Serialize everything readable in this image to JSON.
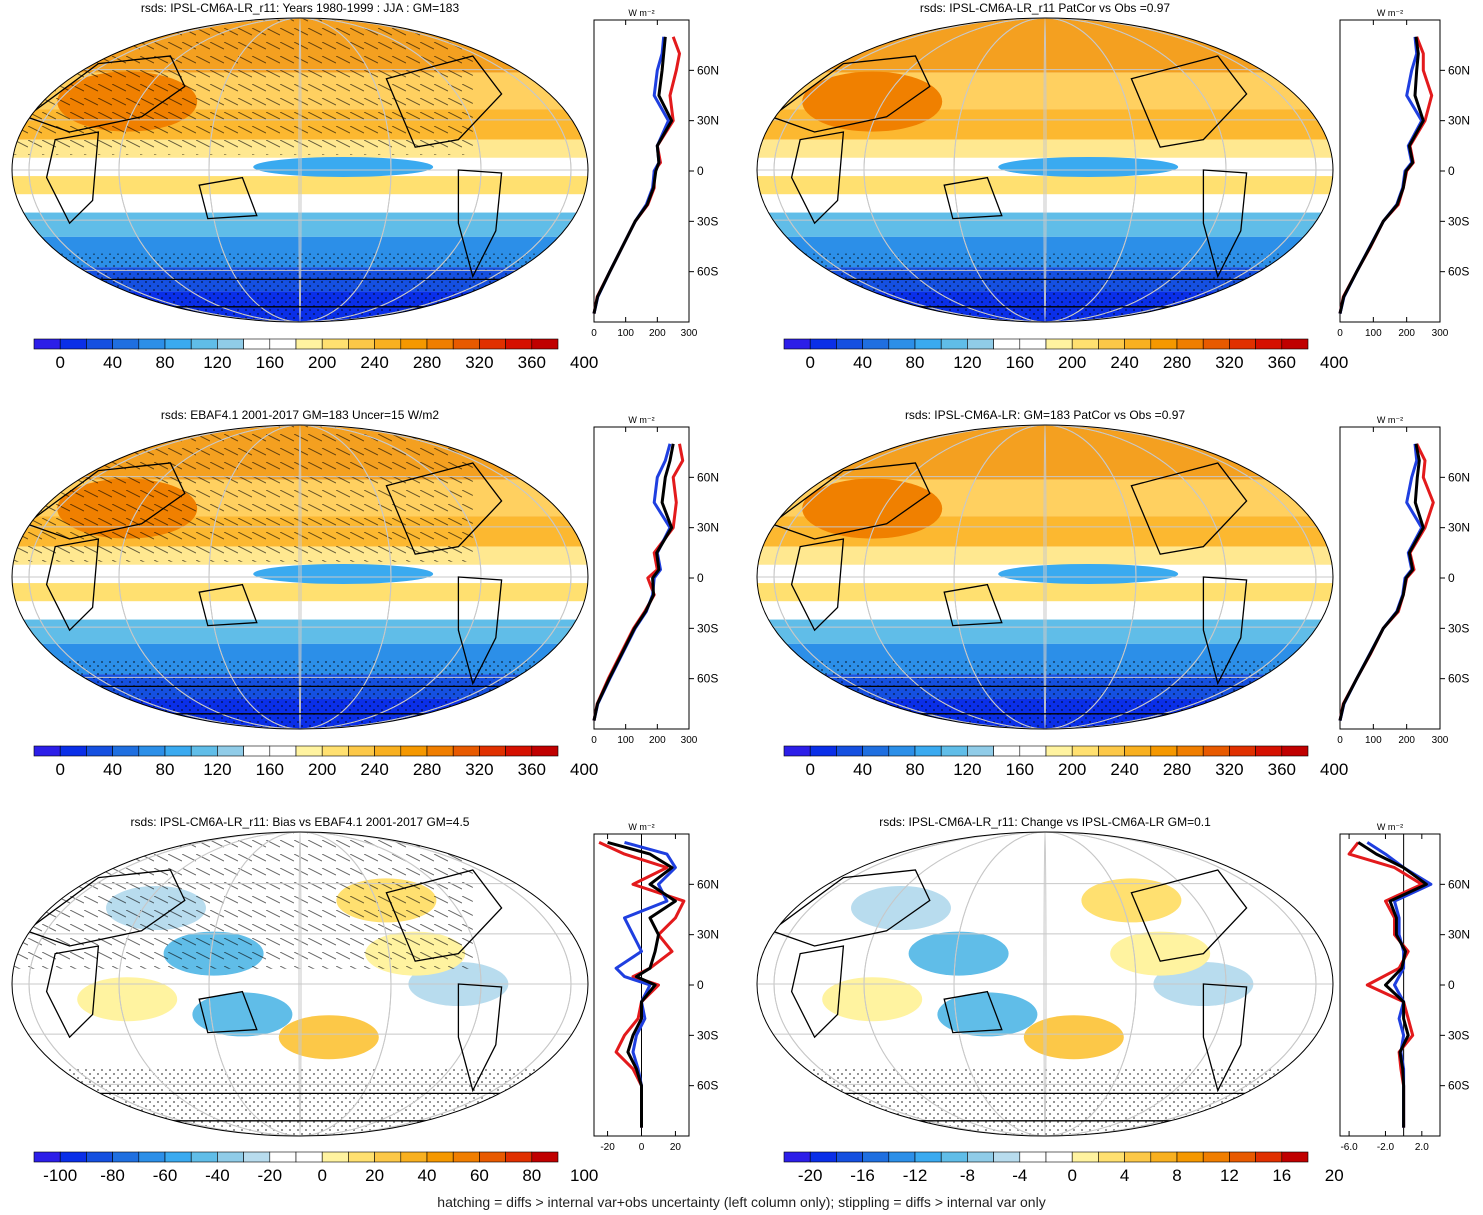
{
  "footer": "hatching = diffs > internal var+obs uncertainty (left column only); stippling = diffs > internal var only",
  "lat_ticks": [
    "60N",
    "30N",
    "0",
    "30S",
    "60S"
  ],
  "lat_values": [
    60,
    30,
    0,
    -30,
    -60
  ],
  "profile_unit": "W m⁻²",
  "colors": {
    "obs_line": "#e31a1c",
    "model_line": "#1f3fe0",
    "mean_line": "#000000",
    "land": "#000000"
  },
  "chart_data": [
    {
      "type": "heatmap",
      "title": "rsds: IPSL-CM6A-LR_r11: Years 1980-1999 : JJA : GM=183",
      "colorbar": {
        "labels": [
          "0",
          "40",
          "80",
          "120",
          "160",
          "200",
          "240",
          "280",
          "320",
          "360",
          "400"
        ]
      },
      "profile": {
        "xticks": [
          "0",
          "100",
          "200",
          "300"
        ],
        "xlim": [
          0,
          300
        ],
        "lat": [
          80,
          70,
          60,
          45,
          30,
          15,
          5,
          0,
          -10,
          -20,
          -30,
          -45,
          -60,
          -75,
          -85
        ],
        "series": [
          {
            "color": "red",
            "values": [
              250,
              270,
              260,
              240,
              250,
              200,
              210,
              190,
              190,
              170,
              130,
              90,
              50,
              10,
              0
            ]
          },
          {
            "color": "blue",
            "values": [
              220,
              215,
              200,
              190,
              235,
              200,
              205,
              190,
              185,
              165,
              130,
              90,
              50,
              12,
              0
            ]
          },
          {
            "color": "black",
            "values": [
              225,
              220,
              215,
              205,
              245,
              200,
              205,
              195,
              188,
              168,
              130,
              90,
              50,
              11,
              0
            ]
          }
        ]
      }
    },
    {
      "type": "heatmap",
      "title": "rsds: IPSL-CM6A-LR_r11 PatCor vs Obs =0.97",
      "colorbar": {
        "labels": [
          "0",
          "40",
          "80",
          "120",
          "160",
          "200",
          "240",
          "280",
          "320",
          "360",
          "400"
        ]
      },
      "profile": {
        "xticks": [
          "0",
          "100",
          "200",
          "300"
        ],
        "xlim": [
          0,
          300
        ],
        "lat": [
          80,
          70,
          60,
          45,
          30,
          15,
          5,
          0,
          -10,
          -20,
          -30,
          -45,
          -60,
          -75,
          -85
        ],
        "series": [
          {
            "color": "red",
            "values": [
              230,
              250,
              250,
              275,
              255,
              210,
              220,
              200,
              190,
              175,
              130,
              92,
              50,
              10,
              0
            ]
          },
          {
            "color": "blue",
            "values": [
              225,
              230,
              215,
              200,
              245,
              205,
              215,
              195,
              188,
              170,
              130,
              90,
              50,
              12,
              0
            ]
          },
          {
            "color": "black",
            "values": [
              228,
              235,
              230,
              225,
              250,
              208,
              218,
              198,
              190,
              172,
              130,
              91,
              50,
              11,
              0
            ]
          }
        ]
      }
    },
    {
      "type": "heatmap",
      "title": "rsds: EBAF4.1 2001-2017 GM=183 Uncer=15 W/m2",
      "colorbar": {
        "labels": [
          "0",
          "40",
          "80",
          "120",
          "160",
          "200",
          "240",
          "280",
          "320",
          "360",
          "400"
        ]
      },
      "profile": {
        "xticks": [
          "0",
          "100",
          "200",
          "300"
        ],
        "xlim": [
          0,
          300
        ],
        "lat": [
          80,
          70,
          60,
          45,
          30,
          15,
          5,
          0,
          -10,
          -20,
          -30,
          -45,
          -60,
          -75,
          -85
        ],
        "series": [
          {
            "color": "red",
            "values": [
              270,
              280,
              250,
              260,
              250,
              190,
              200,
              170,
              190,
              160,
              125,
              85,
              45,
              10,
              0
            ]
          },
          {
            "color": "blue",
            "values": [
              240,
              225,
              200,
              190,
              240,
              200,
              210,
              190,
              185,
              165,
              130,
              90,
              50,
              12,
              0
            ]
          },
          {
            "color": "black",
            "values": [
              250,
              240,
              225,
              215,
              245,
              198,
              205,
              185,
              188,
              163,
              128,
              88,
              48,
              11,
              0
            ]
          }
        ]
      }
    },
    {
      "type": "heatmap",
      "title": "rsds: IPSL-CM6A-LR: GM=183 PatCor vs Obs =0.97",
      "colorbar": {
        "labels": [
          "0",
          "40",
          "80",
          "120",
          "160",
          "200",
          "240",
          "280",
          "320",
          "360",
          "400"
        ]
      },
      "profile": {
        "xticks": [
          "0",
          "100",
          "200",
          "300"
        ],
        "xlim": [
          0,
          300
        ],
        "lat": [
          80,
          70,
          60,
          45,
          30,
          15,
          5,
          0,
          -10,
          -20,
          -30,
          -45,
          -60,
          -75,
          -85
        ],
        "series": [
          {
            "color": "red",
            "values": [
              230,
              255,
              250,
              280,
              255,
              210,
              222,
              200,
              190,
              175,
              130,
              92,
              50,
              10,
              0
            ]
          },
          {
            "color": "blue",
            "values": [
              225,
              230,
              215,
              200,
              245,
              205,
              215,
              195,
              188,
              170,
              130,
              90,
              50,
              12,
              0
            ]
          },
          {
            "color": "black",
            "values": [
              228,
              238,
              232,
              226,
              250,
              208,
              218,
              198,
              190,
              172,
              130,
              91,
              50,
              11,
              0
            ]
          }
        ]
      }
    },
    {
      "type": "heatmap",
      "title": "rsds: IPSL-CM6A-LR_r11: Bias vs EBAF4.1 2001-2017 GM=4.5",
      "colorbar": {
        "labels": [
          "-100",
          "-80",
          "-60",
          "-40",
          "-20",
          "0",
          "20",
          "40",
          "60",
          "80",
          "100"
        ]
      },
      "profile": {
        "xticks": [
          "-20",
          "0",
          "20"
        ],
        "xlim": [
          -28,
          28
        ],
        "lat": [
          85,
          78,
          70,
          60,
          50,
          40,
          30,
          20,
          10,
          5,
          0,
          -10,
          -20,
          -30,
          -40,
          -50,
          -60,
          -70,
          -85
        ],
        "series": [
          {
            "color": "red",
            "values": [
              -25,
              -10,
              15,
              -5,
              25,
              20,
              10,
              18,
              5,
              -5,
              10,
              0,
              -2,
              -10,
              -15,
              -5,
              0,
              0,
              0
            ]
          },
          {
            "color": "blue",
            "values": [
              -10,
              15,
              20,
              10,
              15,
              -10,
              -5,
              0,
              -15,
              -10,
              5,
              0,
              2,
              -3,
              -5,
              -2,
              0,
              0,
              0
            ]
          },
          {
            "color": "black",
            "values": [
              -20,
              5,
              18,
              5,
              20,
              5,
              10,
              8,
              5,
              -3,
              8,
              0,
              0,
              -5,
              -8,
              -3,
              0,
              0,
              0
            ]
          }
        ]
      }
    },
    {
      "type": "heatmap",
      "title": "rsds: IPSL-CM6A-LR_r11: Change vs IPSL-CM6A-LR GM=0.1",
      "colorbar": {
        "labels": [
          "-20",
          "-16",
          "-12",
          "-8",
          "-4",
          "0",
          "4",
          "8",
          "12",
          "16",
          "20"
        ]
      },
      "profile": {
        "xticks": [
          "-6.0",
          "-2.0",
          "2.0"
        ],
        "xlim": [
          -7,
          4
        ],
        "lat": [
          85,
          78,
          70,
          60,
          50,
          40,
          30,
          20,
          10,
          0,
          -10,
          -20,
          -30,
          -40,
          -50,
          -60,
          -70,
          -85
        ],
        "series": [
          {
            "color": "red",
            "values": [
              -5,
              -6,
              -1,
              2,
              -2,
              -1,
              -1,
              0.5,
              -0.5,
              -4,
              0,
              0.5,
              1,
              -0.5,
              -0.3,
              0,
              0,
              0
            ]
          },
          {
            "color": "blue",
            "values": [
              -4,
              -2,
              0,
              3,
              -1,
              -0.5,
              -0.5,
              0,
              0,
              -1,
              0,
              -0.5,
              0,
              -0.3,
              0,
              0,
              0,
              0
            ]
          },
          {
            "color": "black",
            "values": [
              -5,
              -3,
              0,
              2.5,
              -1.5,
              -0.8,
              -0.8,
              0.2,
              -0.2,
              -2,
              0,
              0,
              0.5,
              -0.4,
              -0.1,
              0,
              0,
              0
            ]
          }
        ]
      }
    }
  ]
}
